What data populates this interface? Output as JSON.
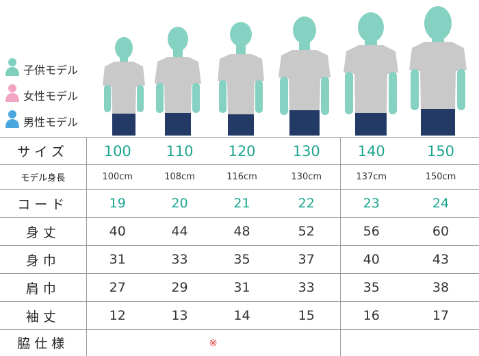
{
  "legend": [
    {
      "label": "子供モデル",
      "color": "#7ecfbd",
      "icon": "person-icon"
    },
    {
      "label": "女性モデル",
      "color": "#f3a6c4",
      "icon": "person-icon"
    },
    {
      "label": "男性モデル",
      "color": "#4aa6dd",
      "icon": "person-icon"
    }
  ],
  "colors": {
    "teal": "#1aa58f",
    "silhouette": "#86d2c2",
    "shirt": "#c9c9c9",
    "jeans": "#243a66"
  },
  "table": {
    "size_label": "サイズ",
    "sizes": [
      "100",
      "110",
      "120",
      "130",
      "140",
      "150"
    ],
    "height_label": "モデル身長",
    "heights": [
      "100cm",
      "108cm",
      "116cm",
      "130cm",
      "137cm",
      "150cm"
    ],
    "code_label": "コード",
    "codes": [
      "19",
      "20",
      "21",
      "22",
      "23",
      "24"
    ],
    "rows": [
      {
        "label": "身丈",
        "values": [
          "40",
          "44",
          "48",
          "52",
          "56",
          "60"
        ]
      },
      {
        "label": "身巾",
        "values": [
          "31",
          "33",
          "35",
          "37",
          "40",
          "43"
        ]
      },
      {
        "label": "肩巾",
        "values": [
          "27",
          "29",
          "31",
          "33",
          "35",
          "38"
        ]
      },
      {
        "label": "袖丈",
        "values": [
          "12",
          "13",
          "14",
          "15",
          "16",
          "17"
        ]
      }
    ],
    "side_label": "脇仕様",
    "side_note": "※"
  }
}
